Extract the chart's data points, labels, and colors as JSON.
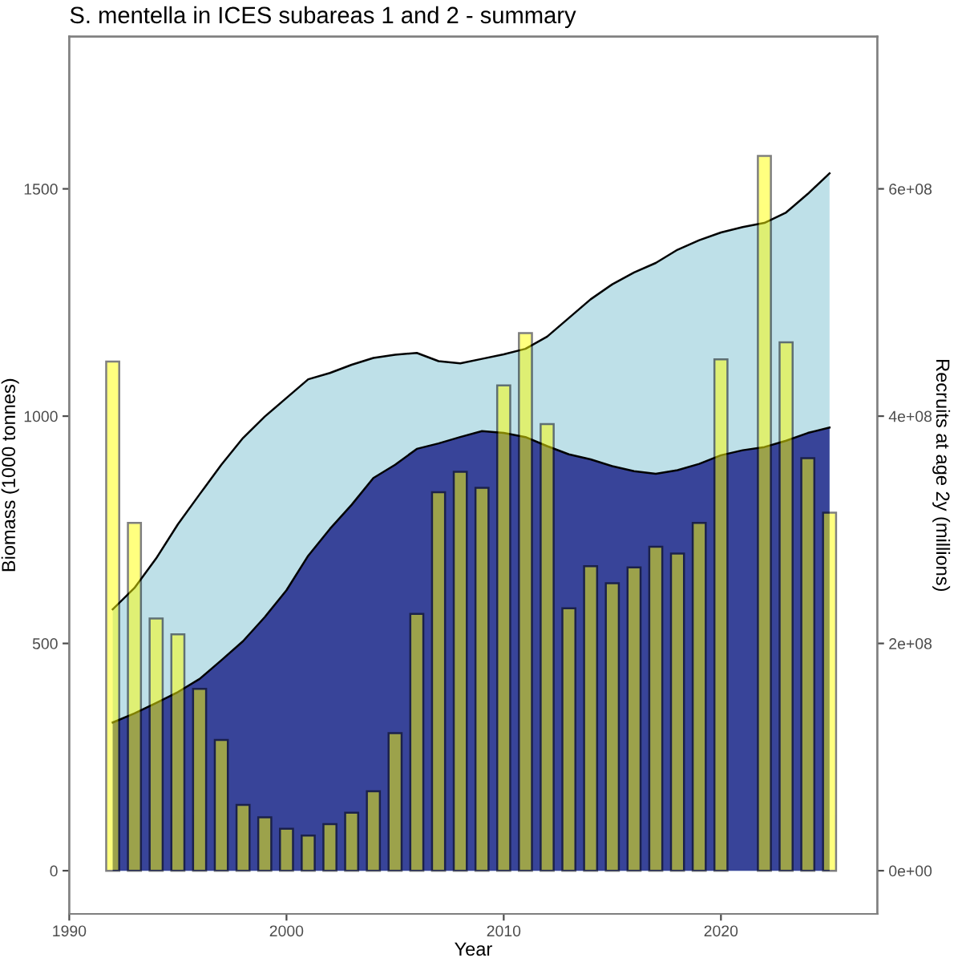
{
  "chart_data": {
    "type": "area",
    "title": "S. mentella in ICES subareas 1 and 2 - summary",
    "xlabel": "Year",
    "ylabel": "Biomass (1000 tonnes)",
    "y2label": "Recruits at age 2y (millions)",
    "x": [
      1992,
      1993,
      1994,
      1995,
      1996,
      1997,
      1998,
      1999,
      2000,
      2001,
      2002,
      2003,
      2004,
      2005,
      2006,
      2007,
      2008,
      2009,
      2010,
      2011,
      2012,
      2013,
      2014,
      2015,
      2016,
      2017,
      2018,
      2019,
      2020,
      2021,
      2022,
      2023,
      2024,
      2025
    ],
    "series": [
      {
        "color": "#bee0e8",
        "values": [
          575,
          622,
          687,
          762,
          828,
          893,
          952,
          999,
          1040,
          1081,
          1095,
          1113,
          1128,
          1135,
          1139,
          1121,
          1116,
          1126,
          1136,
          1148,
          1175,
          1216,
          1257,
          1290,
          1316,
          1337,
          1366,
          1387,
          1404,
          1416,
          1425,
          1448,
          1489,
          1534
        ]
      },
      {
        "color": "#384499",
        "values": [
          326,
          346,
          369,
          393,
          422,
          463,
          505,
          558,
          617,
          693,
          752,
          805,
          864,
          893,
          928,
          940,
          954,
          967,
          963,
          954,
          934,
          916,
          905,
          890,
          879,
          873,
          881,
          895,
          914,
          925,
          932,
          946,
          963,
          975
        ]
      },
      {
        "type": "bar",
        "axis": "y2",
        "color": "#ffff00",
        "values": [
          448000000,
          306000000,
          222000000,
          208000000,
          160000000,
          115000000,
          58000000,
          47000000,
          37000000,
          31000000,
          41000000,
          51000000,
          70000000,
          121000000,
          226000000,
          333000000,
          351000000,
          337000000,
          427000000,
          473000000,
          393000000,
          231000000,
          268000000,
          253000000,
          267000000,
          285000000,
          279000000,
          306000000,
          450000000,
          null,
          629000000,
          465000000,
          363000000,
          315000000
        ]
      }
    ],
    "xlim": [
      1990,
      2027.2
    ],
    "xticks": [
      1990,
      2000,
      2010,
      2020
    ],
    "ylim": [
      -95,
      1835
    ],
    "yticks": [
      0,
      500,
      1000,
      1500
    ],
    "y2lim": [
      -38000000,
      734000000
    ],
    "y2ticks": [
      {
        "value": 0,
        "label": "0e+00"
      },
      {
        "value": 200000000,
        "label": "2e+08"
      },
      {
        "value": 400000000,
        "label": "4e+08"
      },
      {
        "value": 600000000,
        "label": "6e+08"
      }
    ],
    "grid": false,
    "legend": false
  }
}
